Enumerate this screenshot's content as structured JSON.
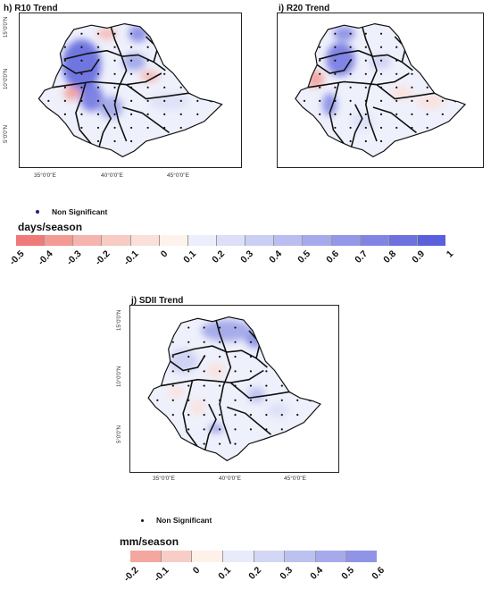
{
  "maps": [
    {
      "id": "r10",
      "title": "h) R10 Trend",
      "lat_labels": [
        "15°0'0\"N",
        "10°0'0\"N",
        "5°0'0\"N"
      ],
      "lon_labels": [
        "35°0'0\"E",
        "40°0'0\"E",
        "45°0'0\"E"
      ]
    },
    {
      "id": "r20",
      "title": "i) R20 Trend"
    },
    {
      "id": "sdii",
      "title": "j) SDII Trend",
      "lat_labels": [
        "15°0'0\"N",
        "10°0'0\"N",
        "5°0'0\"N"
      ],
      "lon_labels": [
        "35°0'0\"E",
        "40°0'0\"E",
        "45°0'0\"E"
      ]
    }
  ],
  "legend1": {
    "significance_label": "Non Significant",
    "unit": "days/season",
    "ticks": [
      "-0.5",
      "-0.4",
      "-0.3",
      "-0.2",
      "-0.1",
      "0",
      "0.1",
      "0.2",
      "0.3",
      "0.4",
      "0.5",
      "0.6",
      "0.7",
      "0.8",
      "0.9",
      "1"
    ],
    "colors": [
      "#f07a7a",
      "#f39a95",
      "#f6b4ae",
      "#f8cbc4",
      "#fbe0da",
      "#fdf2ec",
      "#eceffb",
      "#dcdff7",
      "#cbcff3",
      "#b9bdef",
      "#a6aaeb",
      "#9398e7",
      "#8085e3",
      "#6d72df",
      "#5a60dc"
    ]
  },
  "legend2": {
    "significance_label": "Non Significant",
    "unit": "mm/season",
    "ticks": [
      "-0.2",
      "-0.1",
      "0",
      "0.1",
      "0.2",
      "0.3",
      "0.4",
      "0.5",
      "0.6"
    ],
    "colors": [
      "#f4a79f",
      "#f8cdc5",
      "#fdf1ea",
      "#e8ebfa",
      "#d3d7f5",
      "#bdc1f0",
      "#a6aaeb",
      "#8f94e6"
    ]
  }
}
